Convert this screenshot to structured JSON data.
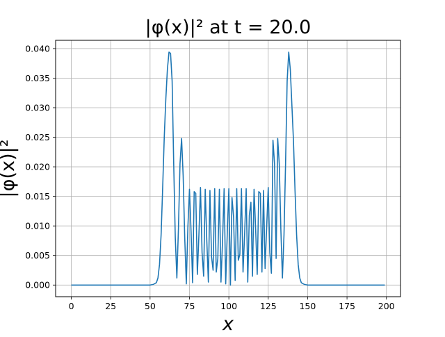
{
  "chart_data": {
    "type": "line",
    "title": "|φ(x)|² at t = 20.0",
    "xlabel": "x",
    "ylabel": "|φ(x)|²",
    "xlim": [
      -9.95,
      208.95
    ],
    "ylim": [
      -0.00197,
      0.0414
    ],
    "xticks": [
      0,
      25,
      50,
      75,
      100,
      125,
      150,
      175,
      200
    ],
    "yticks": [
      0.0,
      0.005,
      0.01,
      0.015,
      0.02,
      0.025,
      0.03,
      0.035,
      0.04
    ],
    "ytick_labels": [
      "0.000",
      "0.005",
      "0.010",
      "0.015",
      "0.020",
      "0.025",
      "0.030",
      "0.035",
      "0.040"
    ],
    "grid": true,
    "series": [
      {
        "color": "#1f77b4",
        "x": [
          0,
          5,
          10,
          15,
          20,
          25,
          30,
          35,
          40,
          45,
          50,
          52,
          54,
          55,
          56,
          57,
          58,
          59,
          60,
          61,
          62,
          63,
          64,
          65,
          66,
          67,
          68,
          69,
          70,
          71,
          72,
          73,
          74,
          75,
          76,
          77,
          78,
          79,
          80,
          81,
          82,
          83,
          84,
          85,
          86,
          87,
          88,
          89,
          90,
          91,
          92,
          93,
          94,
          95,
          96,
          97,
          98,
          99,
          100,
          101,
          102,
          103,
          104,
          105,
          106,
          107,
          108,
          109,
          110,
          111,
          112,
          113,
          114,
          115,
          116,
          117,
          118,
          119,
          120,
          121,
          122,
          123,
          124,
          125,
          126,
          127,
          128,
          129,
          130,
          131,
          132,
          133,
          134,
          135,
          136,
          137,
          138,
          139,
          140,
          141,
          142,
          143,
          144,
          145,
          146,
          148,
          150,
          155,
          160,
          165,
          170,
          175,
          180,
          185,
          190,
          195,
          199
        ],
        "y": [
          0,
          0,
          0,
          0,
          0,
          0,
          0,
          0,
          0,
          0,
          0,
          0.0001,
          0.0004,
          0.0012,
          0.0035,
          0.0085,
          0.0165,
          0.025,
          0.0315,
          0.0365,
          0.0394,
          0.0392,
          0.0345,
          0.0205,
          0.008,
          0.0012,
          0.0095,
          0.0205,
          0.0248,
          0.0185,
          0.008,
          0.0002,
          0.0098,
          0.0162,
          0.0092,
          0.0004,
          0.0158,
          0.0155,
          0.0018,
          0.0085,
          0.0165,
          0.0055,
          0.0015,
          0.0162,
          0.0075,
          0.0005,
          0.016,
          0.0048,
          0.0025,
          0.0163,
          0.0022,
          0.0045,
          0.0162,
          0.0005,
          0.0075,
          0.0163,
          0.0002,
          0.0088,
          0.0163,
          0.0,
          0.0148,
          0.0115,
          0.0008,
          0.0163,
          0.0042,
          0.0052,
          0.0163,
          0.0022,
          0.0085,
          0.0163,
          0.0005,
          0.0118,
          0.014,
          0.0015,
          0.0162,
          0.0095,
          0.0018,
          0.0158,
          0.0155,
          0.0022,
          0.016,
          0.0028,
          0.0098,
          0.0165,
          0.0055,
          0.002,
          0.0245,
          0.0205,
          0.0045,
          0.0248,
          0.0205,
          0.0095,
          0.0012,
          0.0085,
          0.0205,
          0.0345,
          0.0394,
          0.0365,
          0.0305,
          0.0245,
          0.016,
          0.0085,
          0.0035,
          0.0012,
          0.0004,
          0.0001,
          0,
          0,
          0,
          0,
          0,
          0,
          0,
          0,
          0,
          0,
          0
        ]
      }
    ]
  }
}
